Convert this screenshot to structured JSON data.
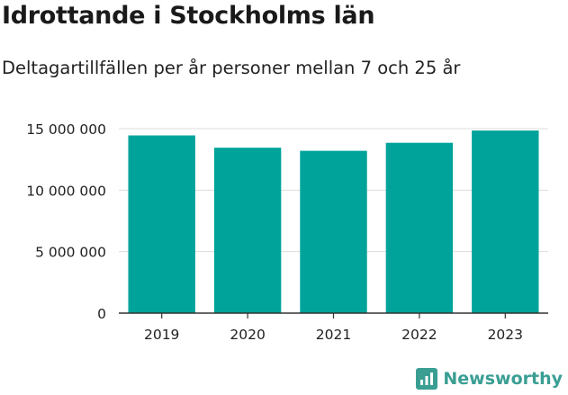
{
  "header": {
    "title": "Idrottande i Stockholms län",
    "subtitle": "Deltagartillfällen per år personer mellan 7 och 25 år"
  },
  "brand": {
    "name": "Newsworthy",
    "icon": "bar-chart-icon",
    "color": "#3a9e93"
  },
  "chart_data": {
    "type": "bar",
    "title": "Idrottande i Stockholms län",
    "subtitle": "Deltagartillfällen per år personer mellan 7 och 25 år",
    "xlabel": "",
    "ylabel": "",
    "categories": [
      "2019",
      "2020",
      "2021",
      "2022",
      "2023"
    ],
    "values": [
      14450000,
      13450000,
      13200000,
      13850000,
      14850000
    ],
    "ylim": [
      0,
      15000000
    ],
    "yticks": [
      0,
      5000000,
      10000000,
      15000000
    ],
    "ytick_labels": [
      "0",
      "5 000 000",
      "10 000 000",
      "15 000 000"
    ],
    "bar_color": "#00a39a",
    "grid": true,
    "legend": "none"
  }
}
